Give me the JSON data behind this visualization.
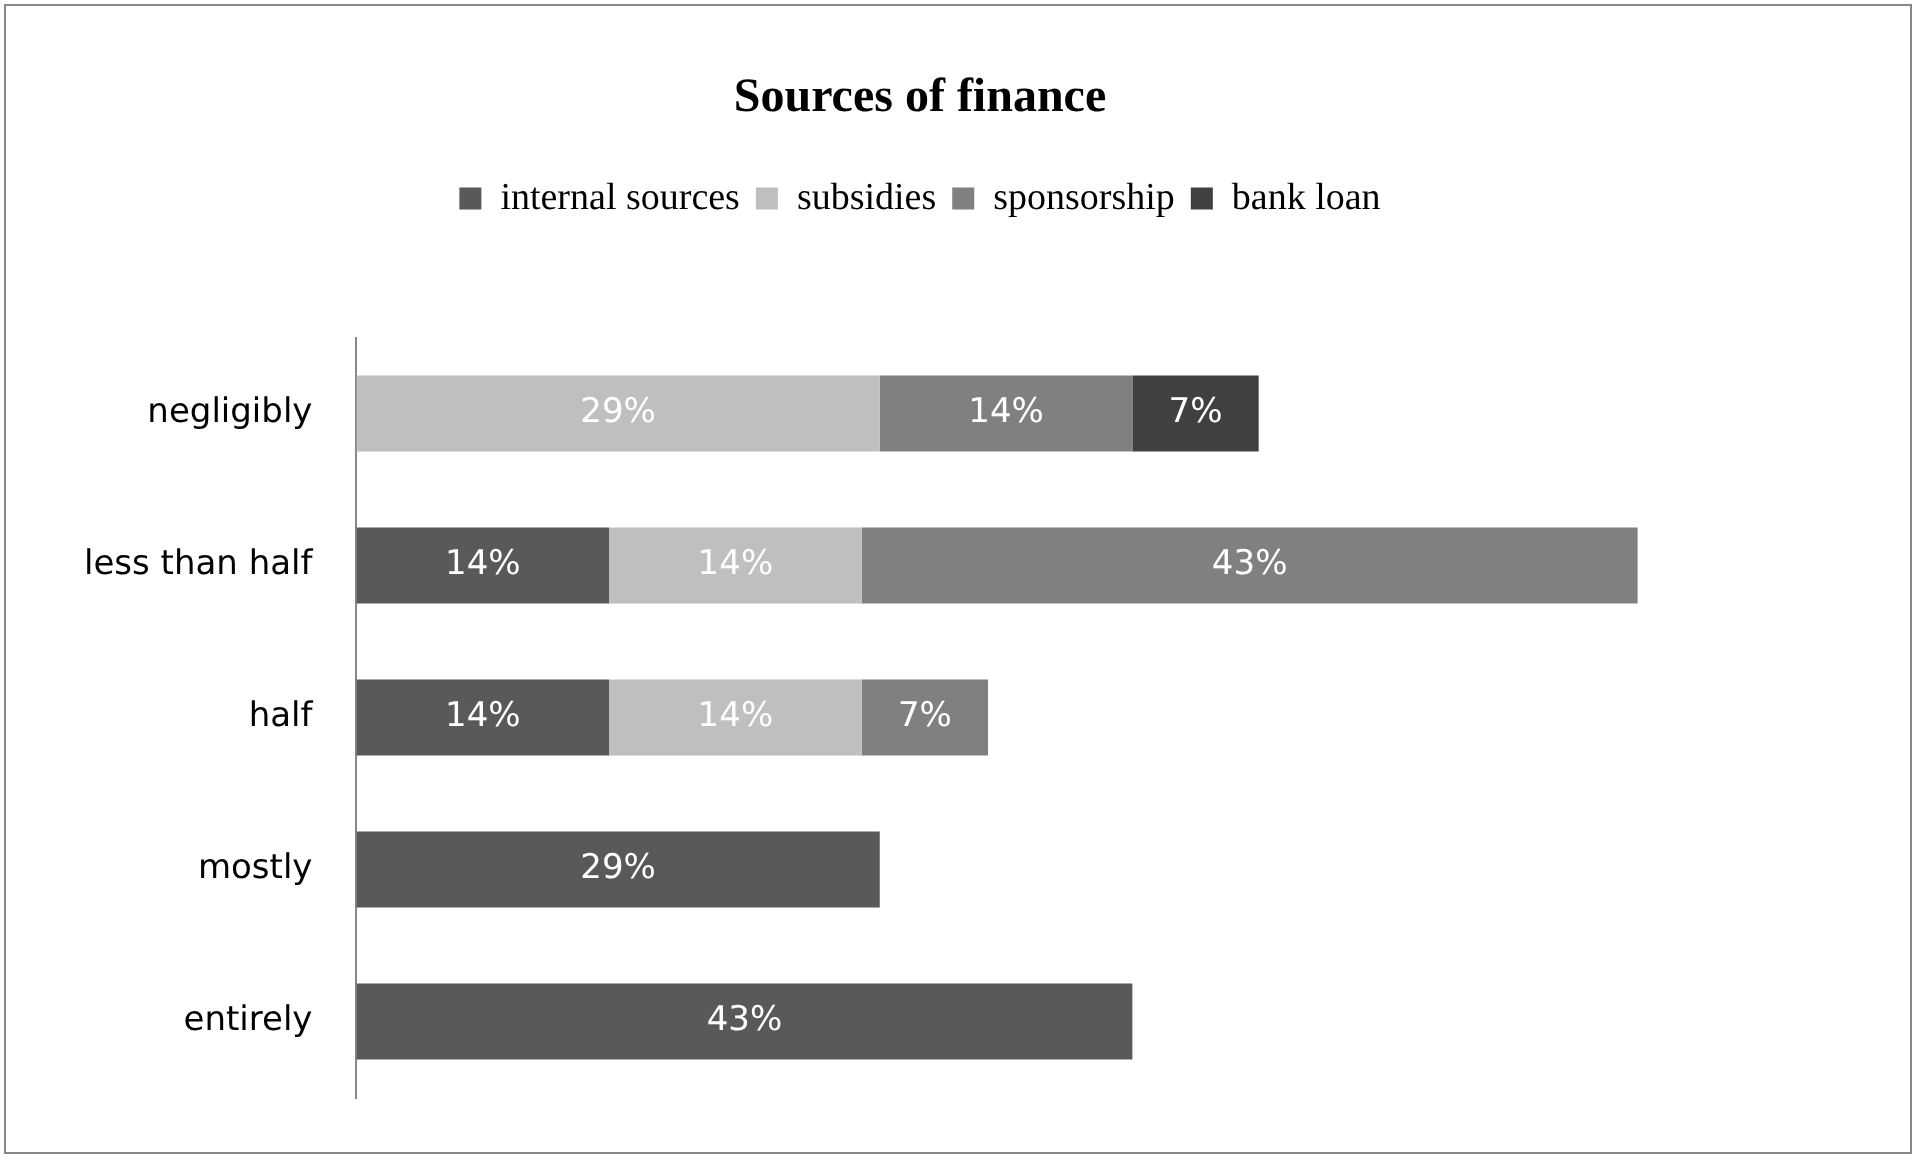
{
  "chart_data": {
    "type": "bar",
    "orientation": "horizontal",
    "stacked": true,
    "title": "Sources of finance",
    "categories": [
      "negligibly",
      "less than half",
      "half",
      "mostly",
      "entirely"
    ],
    "series": [
      {
        "name": "internal sources",
        "color": "#595959",
        "values": [
          null,
          14,
          14,
          29,
          43
        ],
        "value_labels": [
          null,
          "14%",
          "14%",
          "29%",
          "43%"
        ]
      },
      {
        "name": "subsidies",
        "color": "#bfbfbf",
        "values": [
          29,
          14,
          14,
          null,
          null
        ],
        "value_labels": [
          "29%",
          "14%",
          "14%",
          null,
          null
        ]
      },
      {
        "name": "sponsorship",
        "color": "#808080",
        "values": [
          14,
          43,
          7,
          null,
          null
        ],
        "value_labels": [
          "14%",
          "43%",
          "7%",
          null,
          null
        ]
      },
      {
        "name": "bank loan",
        "color": "#404040",
        "values": [
          7,
          null,
          null,
          null,
          null
        ],
        "value_labels": [
          "7%",
          null,
          null,
          null,
          null
        ]
      }
    ],
    "legend": "top",
    "grid": false
  }
}
